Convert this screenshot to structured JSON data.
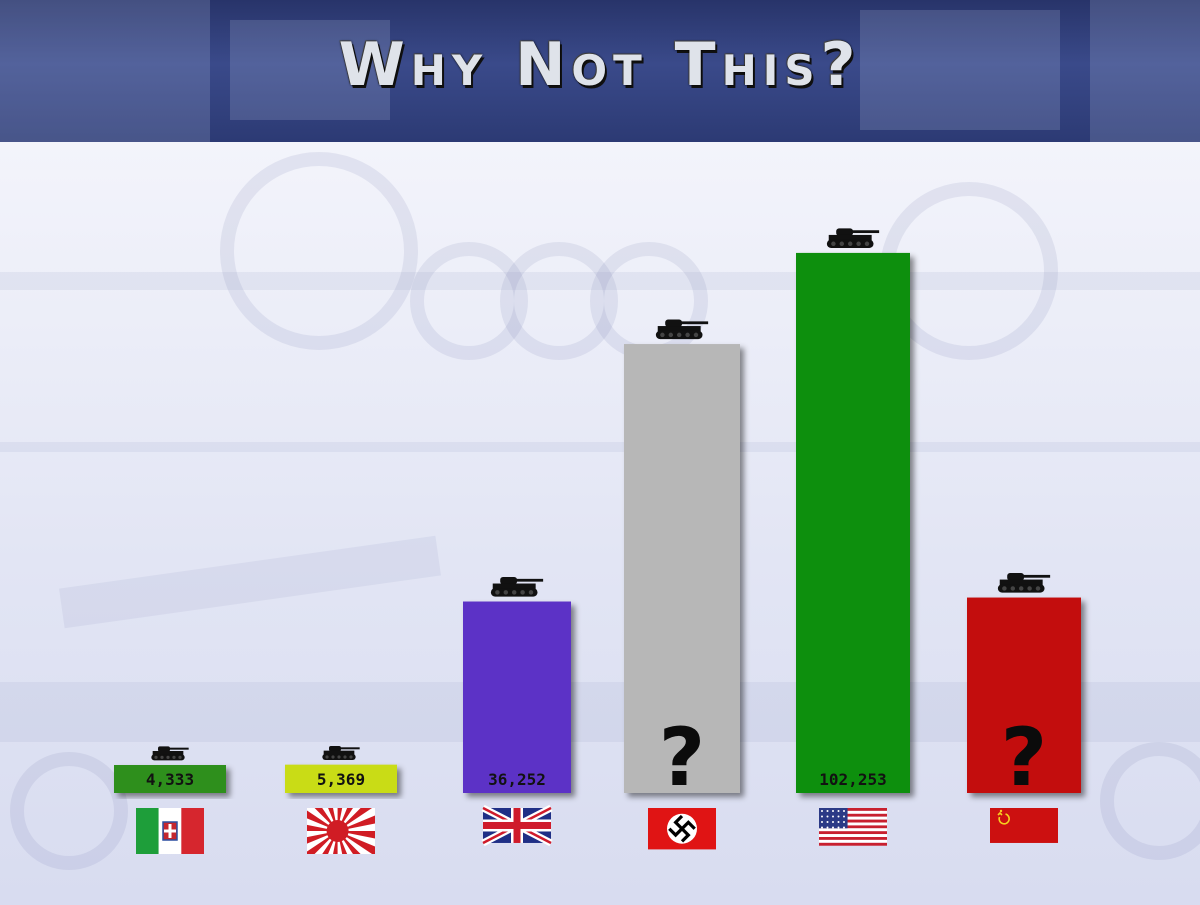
{
  "title": "Why Not This?",
  "chart_data": {
    "type": "bar",
    "categories": [
      "Italy",
      "Japan",
      "United Kingdom",
      "Germany",
      "United States",
      "Soviet Union"
    ],
    "values": [
      4333,
      5369,
      36252,
      null,
      102253,
      null
    ],
    "value_labels": [
      "4,333",
      "5,369",
      "36,252",
      "?",
      "102,253",
      "?"
    ],
    "colors": [
      "#2d8f1a",
      "#c9dc18",
      "#5b30c6",
      "#b7b7b7",
      "#0b8f0b",
      "#c30808"
    ],
    "estimated_heights": [
      4333,
      5369,
      36252,
      85000,
      102253,
      37000
    ],
    "ylim": [
      0,
      110000
    ],
    "icons": [
      "tank-icon",
      "tank-icon",
      "tank-icon",
      "tank-icon",
      "tank-icon",
      "tank-icon"
    ],
    "flags": [
      "italy-flag-icon",
      "japan-rising-sun-flag-icon",
      "union-jack-flag-icon",
      "swastika-flag-icon",
      "us-flag-icon",
      "soviet-flag-icon"
    ]
  }
}
